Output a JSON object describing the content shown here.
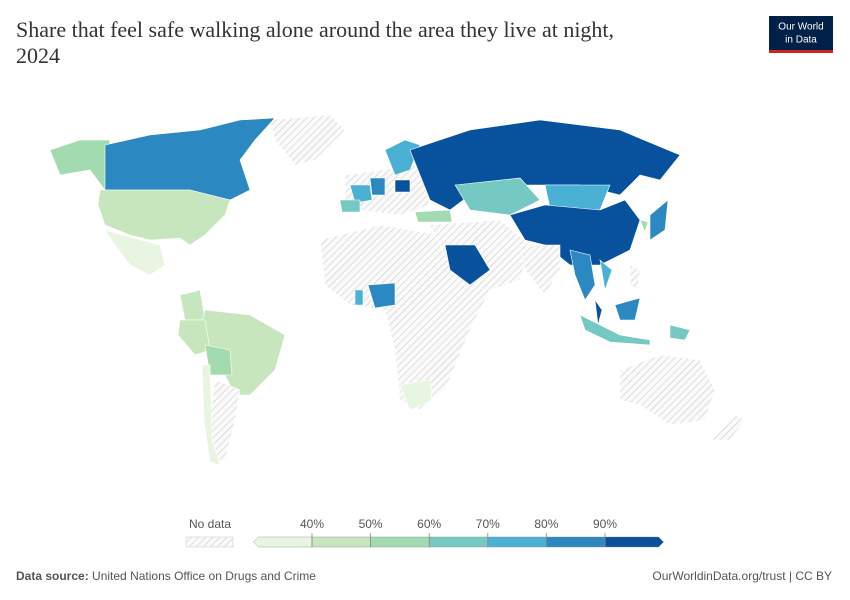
{
  "header": {
    "title_lines": [
      "Share that feel safe walking alone around the area they live at night,",
      "2024"
    ],
    "logo_lines": [
      "Our World",
      "in Data"
    ]
  },
  "legend": {
    "no_data": "No data",
    "ticks": [
      {
        "value": 40,
        "label": "40%"
      },
      {
        "value": 50,
        "label": "50%"
      },
      {
        "value": 60,
        "label": "60%"
      },
      {
        "value": 70,
        "label": "70%"
      },
      {
        "value": 80,
        "label": "80%"
      },
      {
        "value": 90,
        "label": "90%"
      }
    ],
    "colors": [
      "#e8f5e0",
      "#c7e6bd",
      "#a3dbb0",
      "#76c9c2",
      "#4ab0d4",
      "#2b88c0",
      "#08519c"
    ]
  },
  "footer": {
    "source_label": "Data source:",
    "source": "United Nations Office on Drugs and Crime",
    "license": "OurWorldinData.org/trust | CC BY"
  }
}
